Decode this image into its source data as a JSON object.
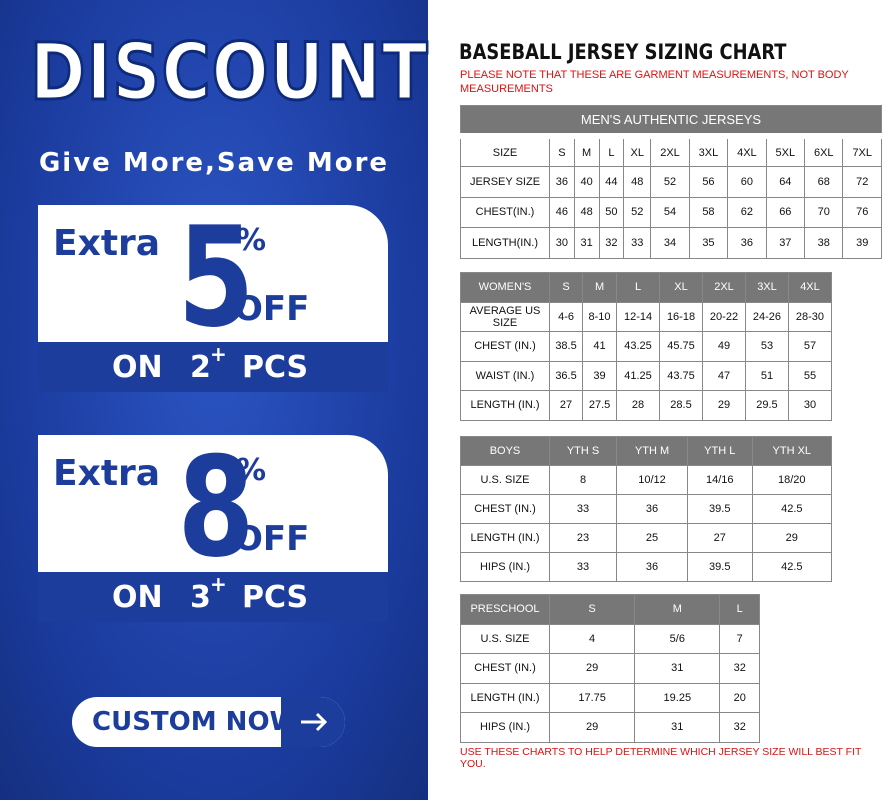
{
  "promo": {
    "title": "DISCOUNT",
    "subtitle": "Give More,Save More",
    "offers": [
      {
        "extra": "Extra",
        "percent": "5",
        "pct_sign": "%",
        "off": "OFF",
        "on": "ON",
        "qty": "2",
        "plus": "+",
        "pcs": "PCS"
      },
      {
        "extra": "Extra",
        "percent": "8",
        "pct_sign": "%",
        "off": "OFF",
        "on": "ON",
        "qty": "3",
        "plus": "+",
        "pcs": "PCS"
      }
    ],
    "button": "CUSTOM NOW"
  },
  "chart": {
    "title": "BASEBALL JERSEY SIZING CHART",
    "note": "PLEASE NOTE THAT THESE ARE GARMENT MEASUREMENTS, NOT BODY MEASUREMENTS",
    "tables": [
      {
        "caption": "MEN'S AUTHENTIC JERSEYS",
        "rows": [
          [
            "SIZE",
            "S",
            "M",
            "L",
            "XL",
            "2XL",
            "3XL",
            "4XL",
            "5XL",
            "6XL",
            "7XL"
          ],
          [
            "JERSEY SIZE",
            "36",
            "40",
            "44",
            "48",
            "52",
            "56",
            "60",
            "64",
            "68",
            "72"
          ],
          [
            "CHEST(IN.)",
            "46",
            "48",
            "50",
            "52",
            "54",
            "58",
            "62",
            "66",
            "70",
            "76"
          ],
          [
            "LENGTH(IN.)",
            "30",
            "31",
            "32",
            "33",
            "34",
            "35",
            "36",
            "37",
            "38",
            "39"
          ]
        ]
      },
      {
        "rows": [
          [
            "WOMEN'S",
            "S",
            "M",
            "L",
            "XL",
            "2XL",
            "3XL",
            "4XL"
          ],
          [
            "AVERAGE US SIZE",
            "4-6",
            "8-10",
            "12-14",
            "16-18",
            "20-22",
            "24-26",
            "28-30"
          ],
          [
            "CHEST (IN.)",
            "38.5",
            "41",
            "43.25",
            "45.75",
            "49",
            "53",
            "57"
          ],
          [
            "WAIST (IN.)",
            "36.5",
            "39",
            "41.25",
            "43.75",
            "47",
            "51",
            "55"
          ],
          [
            "LENGTH (IN.)",
            "27",
            "27.5",
            "28",
            "28.5",
            "29",
            "29.5",
            "30"
          ]
        ]
      },
      {
        "rows": [
          [
            "BOYS",
            "YTH S",
            "YTH M",
            "YTH L",
            "YTH XL"
          ],
          [
            "U.S. SIZE",
            "8",
            "10/12",
            "14/16",
            "18/20"
          ],
          [
            "CHEST (IN.)",
            "33",
            "36",
            "39.5",
            "42.5"
          ],
          [
            "LENGTH (IN.)",
            "23",
            "25",
            "27",
            "29"
          ],
          [
            "HIPS (IN.)",
            "33",
            "36",
            "39.5",
            "42.5"
          ]
        ]
      },
      {
        "rows": [
          [
            "PRESCHOOL",
            "S",
            "M",
            "L"
          ],
          [
            "U.S. SIZE",
            "4",
            "5/6",
            "7"
          ],
          [
            "CHEST (IN.)",
            "29",
            "31",
            "32"
          ],
          [
            "LENGTH (IN.)",
            "17.75",
            "19.25",
            "20"
          ],
          [
            "HIPS (IN.)",
            "29",
            "31",
            "32"
          ]
        ]
      }
    ],
    "footer": "USE THESE CHARTS TO HELP DETERMINE WHICH JERSEY SIZE WILL BEST FIT YOU."
  }
}
